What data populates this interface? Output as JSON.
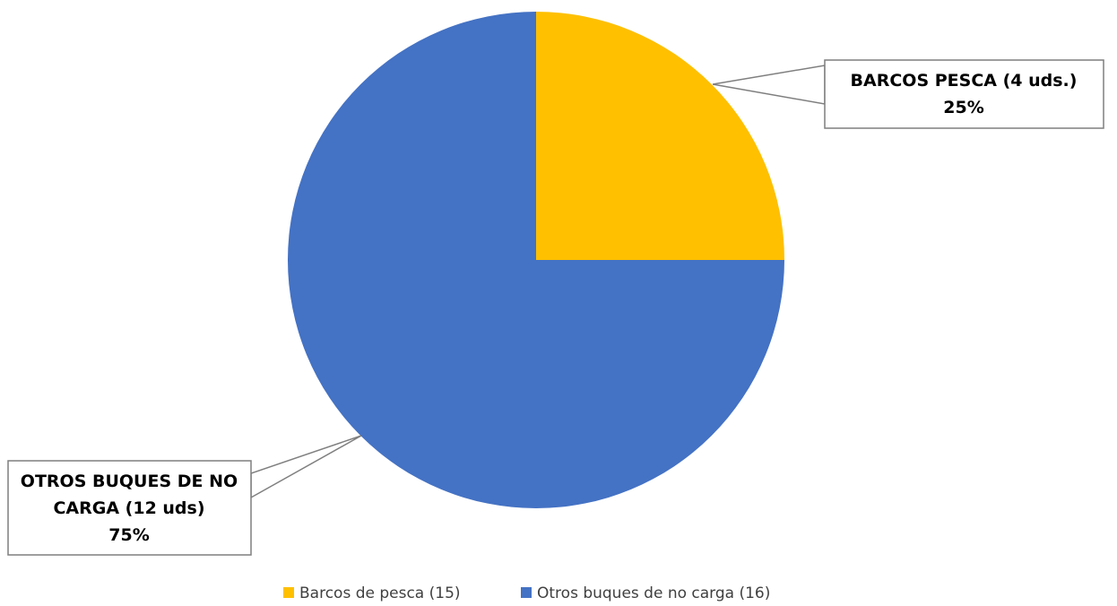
{
  "chart_data": {
    "type": "pie",
    "title": "",
    "slices": [
      {
        "label": "Barcos de pesca (15)",
        "value": 25,
        "color": "#FFC000",
        "callout": [
          "BARCOS PESCA (4 uds.)",
          "25%"
        ]
      },
      {
        "label": "Otros buques de no carga (16)",
        "value": 75,
        "color": "#4472C4",
        "callout": [
          "OTROS BUQUES DE NO",
          "CARGA (12 uds)",
          "75%"
        ]
      }
    ],
    "legend": {
      "position": "bottom",
      "entries": [
        "Barcos de pesca (15)",
        "Otros buques de no carga (16)"
      ]
    }
  }
}
